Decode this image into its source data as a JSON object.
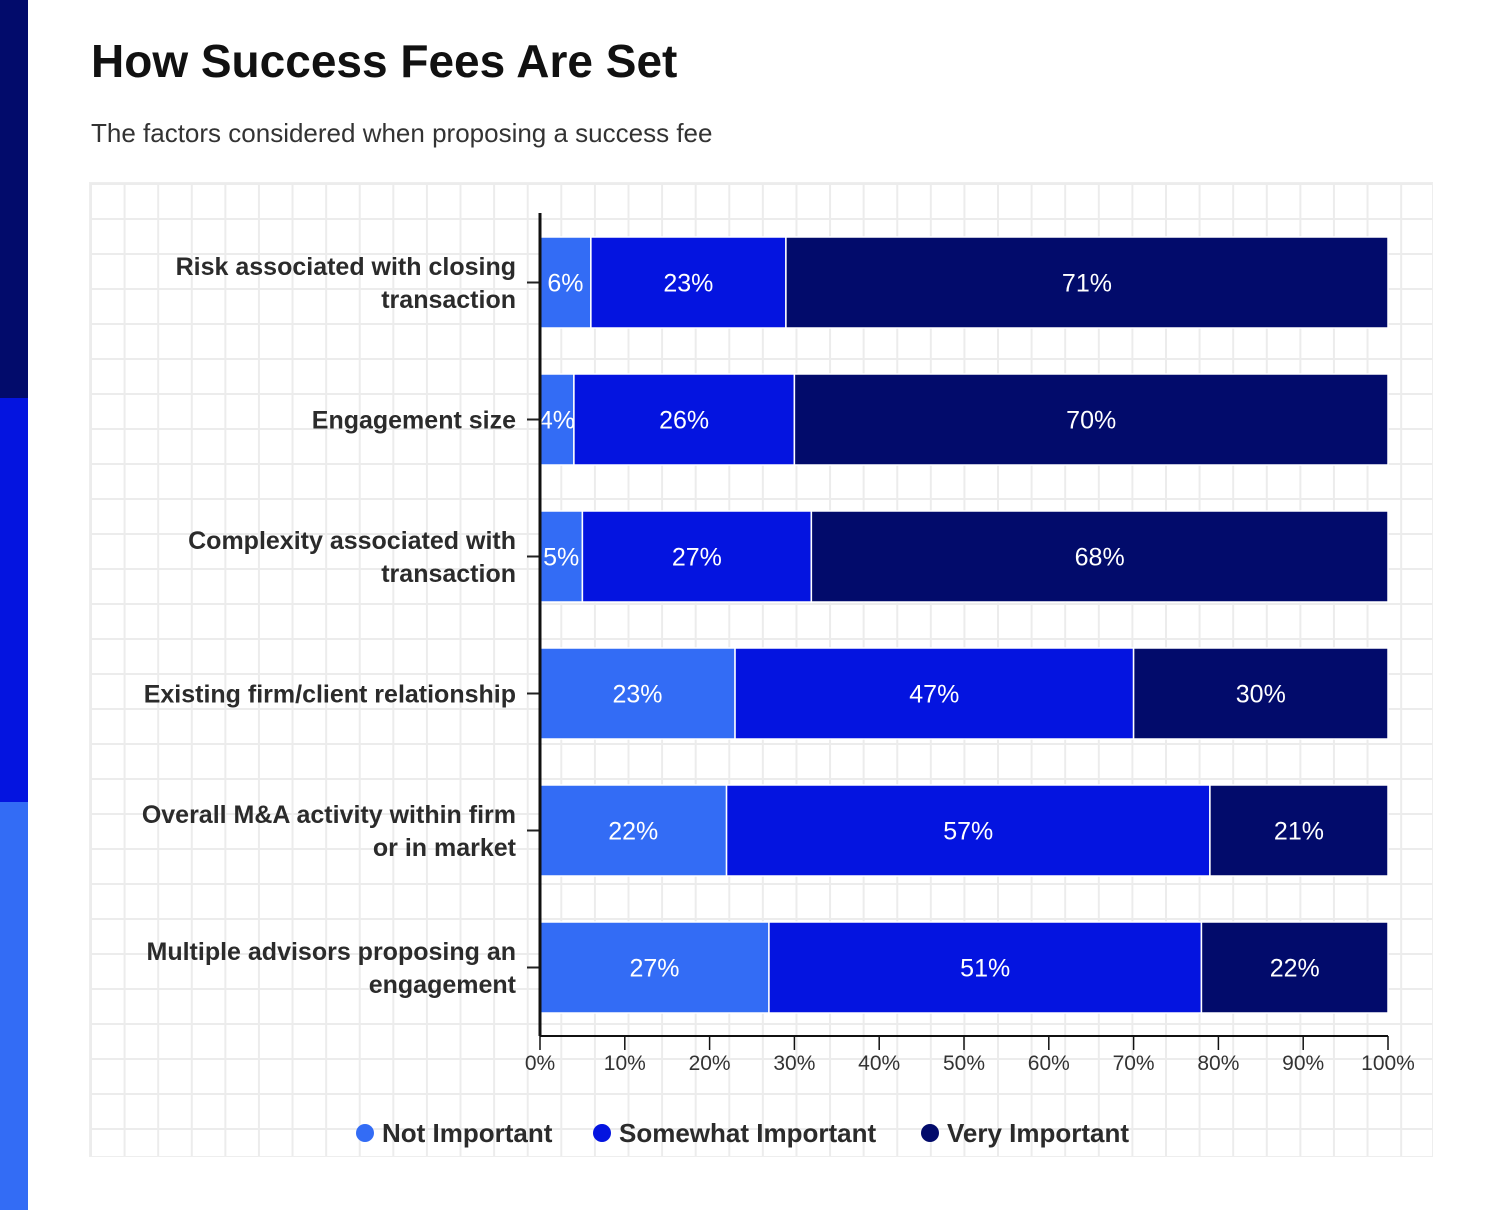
{
  "title": "How Success Fees Are Set",
  "subtitle": "The factors considered when proposing a success fee",
  "colors": {
    "not_important": "#336cf5",
    "somewhat_important": "#0414e0",
    "very_important": "#020b6b"
  },
  "chart_data": {
    "type": "bar",
    "orientation": "horizontal",
    "stacked": true,
    "title": "How Success Fees Are Set",
    "subtitle": "The factors considered when proposing a success fee",
    "categories": [
      [
        "Risk associated with closing",
        "transaction"
      ],
      [
        "Engagement size"
      ],
      [
        "Complexity associated with",
        "transaction"
      ],
      [
        "Existing firm/client relationship"
      ],
      [
        "Overall M&A activity within firm",
        "or in market"
      ],
      [
        "Multiple advisors proposing an",
        "engagement"
      ]
    ],
    "series": [
      {
        "name": "Not Important",
        "color": "#336cf5",
        "values": [
          6,
          4,
          5,
          23,
          22,
          27
        ]
      },
      {
        "name": "Somewhat Important",
        "color": "#0414e0",
        "values": [
          23,
          26,
          27,
          47,
          57,
          51
        ]
      },
      {
        "name": "Very Important",
        "color": "#020b6b",
        "values": [
          71,
          70,
          68,
          30,
          21,
          22
        ]
      }
    ],
    "xlim": [
      0,
      100
    ],
    "xticks": [
      "0%",
      "10%",
      "20%",
      "30%",
      "40%",
      "50%",
      "60%",
      "70%",
      "80%",
      "90%",
      "100%"
    ],
    "value_suffix": "%",
    "grid": true,
    "legend": "bottom"
  }
}
